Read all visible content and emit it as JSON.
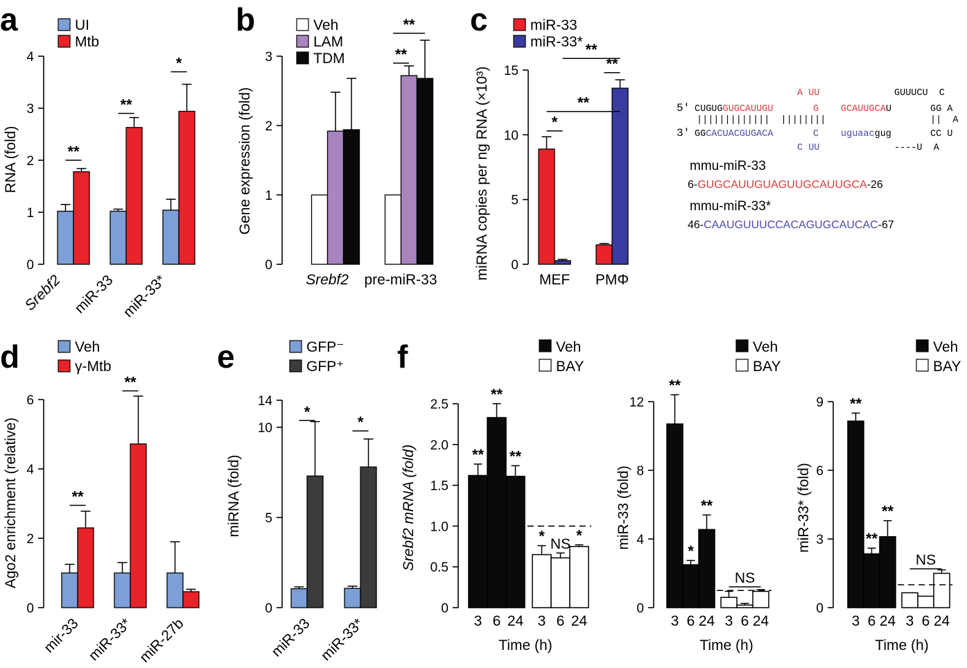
{
  "colors": {
    "blue": "#7b9fd6",
    "red": "#e8232a",
    "purple": "#a985c0",
    "black": "#0a0a0a",
    "dark": "#3b3b3b",
    "navy": "#3a3ba0",
    "white": "#ffffff",
    "seq_red": "#d93a3a",
    "seq_blue": "#4a4aa8"
  },
  "chart_data": [
    {
      "id": "a",
      "type": "bar",
      "panel_label": "a",
      "ylabel": "RNA (fold)",
      "ylim": [
        0,
        4
      ],
      "yticks": [
        0,
        1,
        2,
        3,
        4
      ],
      "categories": [
        "Srebf2",
        "miR-33",
        "miR-33*"
      ],
      "series": [
        {
          "name": "UI",
          "color": "blue",
          "values": [
            1.02,
            1.02,
            1.04
          ],
          "err": [
            0.13,
            0.04,
            0.21
          ]
        },
        {
          "name": "Mtb",
          "color": "red",
          "values": [
            1.78,
            2.63,
            2.94
          ],
          "err": [
            0.06,
            0.19,
            0.52
          ]
        }
      ],
      "sig": [
        {
          "label": "**",
          "y": 2.0,
          "from": 0,
          "to": 1,
          "cat": 0
        },
        {
          "label": "**",
          "y": 2.9,
          "from": 0,
          "to": 1,
          "cat": 1
        },
        {
          "label": "*",
          "y": 3.7,
          "from": 0,
          "to": 1,
          "cat": 2
        }
      ]
    },
    {
      "id": "b",
      "type": "bar",
      "panel_label": "b",
      "ylabel": "Gene expression (fold)",
      "ylim": [
        0,
        3
      ],
      "yticks": [
        0,
        1,
        2,
        3
      ],
      "categories": [
        "Srebf2",
        "pre-miR-33"
      ],
      "series": [
        {
          "name": "Veh",
          "color": "white",
          "values": [
            1.0,
            1.0
          ],
          "err": [
            0,
            0
          ]
        },
        {
          "name": "LAM",
          "color": "purple",
          "values": [
            1.92,
            2.72
          ],
          "err": [
            0.56,
            0.14
          ]
        },
        {
          "name": "TDM",
          "color": "black",
          "values": [
            1.94,
            2.68
          ],
          "err": [
            0.74,
            0.55
          ]
        }
      ],
      "sig": [
        {
          "label": "**",
          "y": 2.9,
          "from": 0,
          "to": 1,
          "cat": 1
        },
        {
          "label": "**",
          "y": 3.33,
          "from": 0,
          "to": 2,
          "cat": 1
        }
      ]
    },
    {
      "id": "c",
      "type": "bar",
      "panel_label": "c",
      "ylabel": "miRNA copies per ng RNA (×10³)",
      "ylim": [
        0,
        15
      ],
      "yticks": [
        0,
        5,
        10,
        15
      ],
      "categories": [
        "MEF",
        "PMΦ"
      ],
      "series": [
        {
          "name": "miR-33",
          "color": "red",
          "values": [
            8.9,
            1.5
          ],
          "err": [
            0.95,
            0.1
          ]
        },
        {
          "name": "miR-33*",
          "color": "navy",
          "values": [
            0.28,
            13.6
          ],
          "err": [
            0.1,
            0.65
          ]
        }
      ],
      "sig": [
        {
          "label": "*",
          "y": 10.3,
          "cat": 0,
          "from": 0,
          "to": 1
        },
        {
          "label": "**",
          "y": 14.8,
          "cat": 1,
          "from": 0,
          "to": 1
        },
        {
          "label": "**",
          "y": 11.8,
          "span": [
            [
              0,
              0
            ],
            [
              1,
              1
            ]
          ]
        },
        {
          "label": "**",
          "y": 15.9,
          "span": [
            [
              0,
              1
            ],
            [
              1,
              1
            ]
          ]
        }
      ]
    },
    {
      "id": "d",
      "type": "bar",
      "panel_label": "d",
      "ylabel": "Ago2 enrichment (relative)",
      "ylim": [
        0,
        6
      ],
      "yticks": [
        0,
        2,
        4,
        6
      ],
      "categories": [
        "mir-33",
        "miR-33*",
        "miR-27b"
      ],
      "series": [
        {
          "name": "Veh",
          "color": "blue",
          "values": [
            1.0,
            1.0,
            1.0
          ],
          "err": [
            0.25,
            0.3,
            0.9
          ]
        },
        {
          "name": "γ-Mtb",
          "color": "red",
          "values": [
            2.3,
            4.72,
            0.46
          ],
          "err": [
            0.48,
            1.38,
            0.07
          ]
        }
      ],
      "sig": [
        {
          "label": "**",
          "y": 2.95,
          "from": 0,
          "to": 1,
          "cat": 0
        },
        {
          "label": "**",
          "y": 6.25,
          "from": 0,
          "to": 1,
          "cat": 1
        }
      ]
    },
    {
      "id": "e",
      "type": "bar",
      "panel_label": "e",
      "ylabel": "miRNA (fold)",
      "ylim": [
        0,
        14
      ],
      "ytick_vals": [
        0,
        5,
        10,
        14
      ],
      "yscale": "broken",
      "ymap": [
        [
          0,
          0
        ],
        [
          10,
          10
        ],
        [
          14,
          11.5
        ]
      ],
      "categories": [
        "miR-33",
        "miR-33*"
      ],
      "series": [
        {
          "name": "GFP⁻",
          "color": "blue",
          "values": [
            1.05,
            1.07
          ],
          "err": [
            0.1,
            0.12
          ]
        },
        {
          "name": "GFP⁺",
          "color": "dark",
          "values": [
            7.3,
            7.8
          ],
          "err": [
            3.55,
            1.55
          ]
        }
      ],
      "sig": [
        {
          "label": "*",
          "y": 11.0,
          "from": 0,
          "to": 1,
          "cat": 0
        },
        {
          "label": "*",
          "y": 9.8,
          "from": 0,
          "to": 1,
          "cat": 1
        }
      ]
    },
    {
      "id": "f1",
      "type": "bar",
      "panel_label": "f",
      "ylabel": "Srebf2 mRNA (fold)",
      "ylim": [
        0,
        2.5
      ],
      "yticks": [
        0,
        0.5,
        1.0,
        1.5,
        2.0,
        2.5
      ],
      "ytick_labels": [
        "0",
        "0.5",
        "1.0",
        "1.5",
        "2.0",
        "2.5"
      ],
      "xlabel": "Time (h)",
      "baseline": 1.0,
      "groups": [
        {
          "name": "Veh",
          "color": "black",
          "times": [
            "3",
            "6",
            "24"
          ],
          "values": [
            1.62,
            2.33,
            1.61
          ],
          "err": [
            0.14,
            0.17,
            0.13
          ],
          "stars": [
            "**",
            "**",
            "**"
          ]
        },
        {
          "name": "BAY",
          "color": "white",
          "times": [
            "3",
            "6",
            "24"
          ],
          "values": [
            0.65,
            0.61,
            0.75
          ],
          "err": [
            0.11,
            0.06,
            0.02
          ],
          "stars": [
            "*",
            "NS",
            "*"
          ]
        }
      ]
    },
    {
      "id": "f2",
      "type": "bar",
      "ylabel": "miR-33 (fold)",
      "ylim": [
        0,
        12
      ],
      "yticks": [
        0,
        4,
        8,
        12
      ],
      "xlabel": "Time (h)",
      "baseline": 1.0,
      "groups": [
        {
          "name": "Veh",
          "color": "black",
          "times": [
            "3",
            "6",
            "24"
          ],
          "values": [
            10.7,
            2.5,
            4.55
          ],
          "err": [
            1.7,
            0.25,
            0.85
          ],
          "stars": [
            "**",
            "*",
            "**"
          ]
        },
        {
          "name": "BAY",
          "color": "white",
          "times": [
            "3",
            "6",
            "24"
          ],
          "values": [
            0.6,
            0.15,
            0.95
          ],
          "err": [
            0.35,
            0.1,
            0.1
          ],
          "stars": []
        }
      ],
      "ns_label": "NS"
    },
    {
      "id": "f3",
      "type": "bar",
      "ylabel": "miR-33* (fold)",
      "ylim": [
        0,
        9
      ],
      "yticks": [
        0,
        3,
        6,
        9
      ],
      "xlabel": "Time (h)",
      "baseline": 1.0,
      "groups": [
        {
          "name": "Veh",
          "color": "black",
          "times": [
            "3",
            "6",
            "24"
          ],
          "values": [
            8.15,
            2.35,
            3.1
          ],
          "err": [
            0.35,
            0.25,
            0.7
          ],
          "stars": [
            "**",
            "**",
            "**"
          ]
        },
        {
          "name": "BAY",
          "color": "white",
          "times": [
            "3",
            "6",
            "24"
          ],
          "values": [
            0.65,
            0.5,
            1.5
          ],
          "err": [
            0,
            0,
            0.15
          ],
          "stars": []
        }
      ],
      "ns_label": "NS"
    }
  ],
  "hairpin": {
    "line1_red": "A UU",
    "line1_black": "GUUUCU  C",
    "line2_prefix": "5′",
    "line2_black1": "CUGUG",
    "line2_red1": "GUGCAUUGU",
    "line2_red2": "G",
    "line2_red3": "GCAUUGCA",
    "line2_black2": "U",
    "line2_end": "GG A",
    "line3": "|||||||||||||  ||||||||",
    "line3_end": "||  A",
    "line4_prefix": "3′",
    "line4_black1": "GG",
    "line4_blue1": "CACUACGUGACA",
    "line4_blue2": "C",
    "line4_blue3": "uguaac",
    "line4_black2": "gug",
    "line4_end": "CC U",
    "line5_blue": "C UU",
    "line5_black": "----U  A",
    "mir33_name": "mmu-miR-33",
    "mir33_start": "6-",
    "mir33_seq": "GUGCAUUGUAGUUGCAUUGCA",
    "mir33_end": "-26",
    "mir33s_name": "mmu-miR-33*",
    "mir33s_start": "46-",
    "mir33s_seq": "CAAUGUUUCCACAGUGCAUCAC",
    "mir33s_end": "-67"
  }
}
